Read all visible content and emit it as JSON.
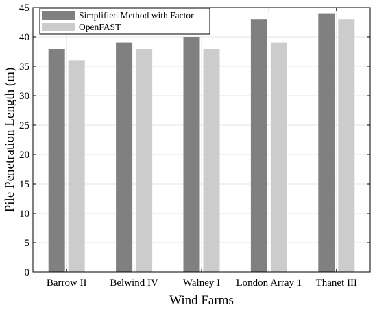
{
  "chart_data": {
    "type": "bar",
    "xlabel": "Wind Farms",
    "ylabel": "Pile Penetration Length (m)",
    "categories": [
      "Barrow II",
      "Belwind IV",
      "Walney I",
      "London Array 1",
      "Thanet III"
    ],
    "series": [
      {
        "name": "Simplified Method with Factor",
        "values": [
          38,
          39,
          40,
          43,
          44
        ],
        "color": "#808080"
      },
      {
        "name": "OpenFAST",
        "values": [
          36,
          38,
          38,
          39,
          43
        ],
        "color": "#cccccc"
      }
    ],
    "ylim": [
      0,
      45
    ],
    "yticks": [
      0,
      5,
      10,
      15,
      20,
      25,
      30,
      35,
      40,
      45
    ],
    "grid": true,
    "legend": "top-left"
  }
}
